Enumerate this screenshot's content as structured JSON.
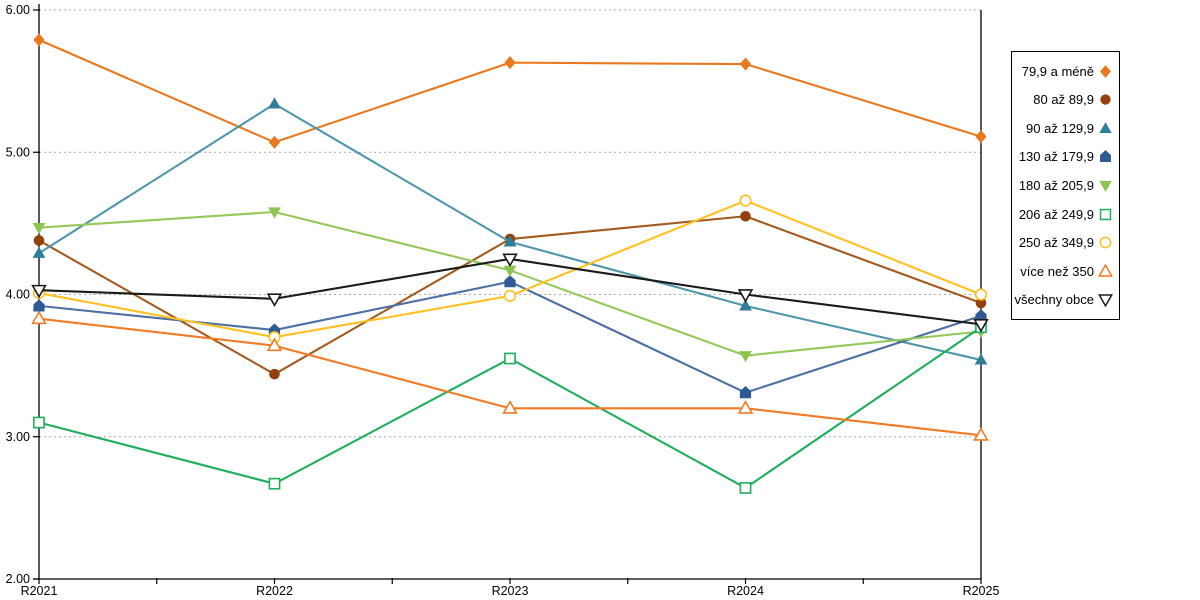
{
  "chart_data": {
    "type": "line",
    "title": "",
    "xlabel": "",
    "ylabel": "",
    "categories": [
      "R2021",
      "R2022",
      "R2023",
      "R2024",
      "R2025"
    ],
    "ylim": [
      2.0,
      6.0
    ],
    "ytick_labels": [
      "2.00",
      "3.00",
      "4.00",
      "5.00",
      "6.00"
    ],
    "grid": "horizontal-dashed",
    "legend_position": "right-outside",
    "series": [
      {
        "name": "79,9 a méně",
        "marker": "diamond",
        "filled": true,
        "color": "#E8791E",
        "marker_color": "#E8791E",
        "values": [
          5.79,
          5.07,
          5.63,
          5.62,
          5.11
        ]
      },
      {
        "name": "80 až 89,9",
        "marker": "circle",
        "filled": true,
        "color": "#A35A1E",
        "marker_color": "#93400F",
        "values": [
          4.38,
          3.44,
          4.39,
          4.55,
          3.94
        ]
      },
      {
        "name": "90 až 129,9",
        "marker": "triangle-up",
        "filled": true,
        "color": "#4E96AB",
        "marker_color": "#2F7F9B",
        "values": [
          4.29,
          5.34,
          4.37,
          3.92,
          3.54
        ]
      },
      {
        "name": "130 až 179,9",
        "marker": "pentagon",
        "filled": true,
        "color": "#4C6FA5",
        "marker_color": "#2E5B94",
        "values": [
          3.92,
          3.75,
          4.09,
          3.31,
          3.85
        ]
      },
      {
        "name": "180 až 205,9",
        "marker": "triangle-down",
        "filled": true,
        "color": "#94C95A",
        "marker_color": "#8CC551",
        "values": [
          4.47,
          4.58,
          4.17,
          3.57,
          3.74
        ]
      },
      {
        "name": "206 až 249,9",
        "marker": "square",
        "filled": false,
        "color": "#1FAF5C",
        "marker_color": "#1FAF5C",
        "values": [
          3.1,
          2.67,
          3.55,
          2.64,
          3.77
        ]
      },
      {
        "name": "250 až 349,9",
        "marker": "circle",
        "filled": false,
        "color": "#FFC120",
        "marker_color": "#FFC120",
        "values": [
          4.01,
          3.7,
          3.99,
          4.66,
          4.0
        ]
      },
      {
        "name": "více než 350",
        "marker": "triangle-up",
        "filled": false,
        "color": "#F27A24",
        "marker_color": "#F27A24",
        "values": [
          3.83,
          3.64,
          3.2,
          3.2,
          3.01
        ]
      },
      {
        "name": "všechny obce",
        "marker": "triangle-down",
        "filled": false,
        "color": "#1A1A1A",
        "marker_color": "#1A1A1A",
        "values": [
          4.03,
          3.97,
          4.25,
          4.0,
          3.79
        ]
      }
    ]
  },
  "colors": {
    "background": "#FFFFFF",
    "axis": "#000000",
    "gridline": "#ABABAB",
    "text": "#000000"
  }
}
